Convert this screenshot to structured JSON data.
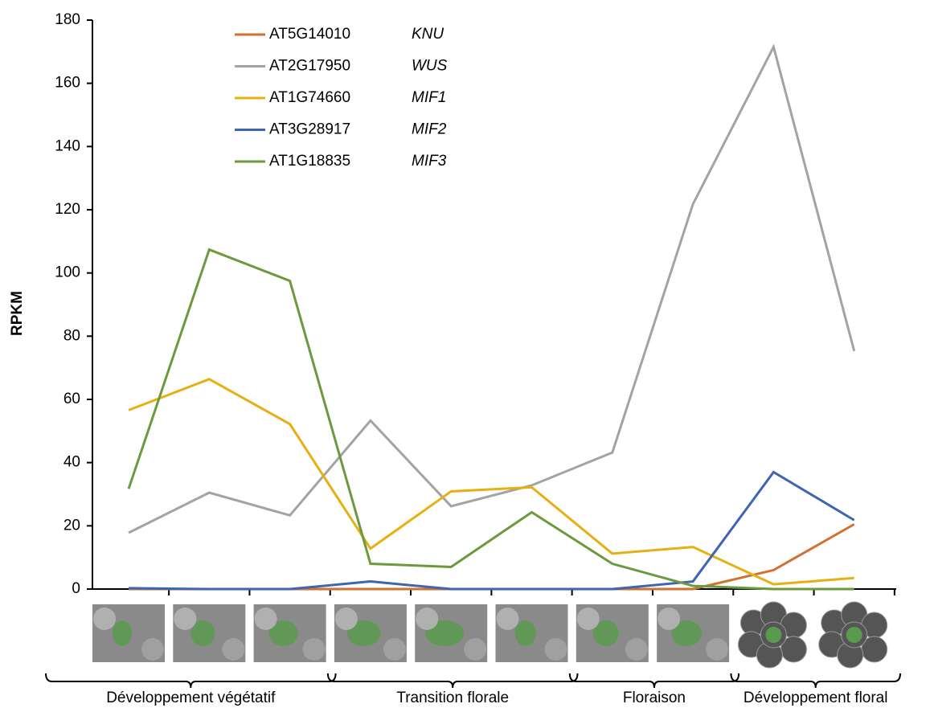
{
  "chart_data": {
    "type": "line",
    "y_label": "RPKM",
    "categories": [
      null,
      null,
      null,
      null,
      null,
      null,
      null,
      null,
      null,
      null
    ],
    "series": [
      {
        "name": "AT5G14010",
        "gene": "KNU",
        "color": "#d2702e",
        "values": [
          0,
          0,
          0,
          0,
          0,
          0,
          0,
          0,
          6,
          20.5
        ]
      },
      {
        "name": "AT2G17950",
        "gene": "WUS",
        "color": "#a3a3a3",
        "values": [
          17.8,
          30.5,
          23.3,
          53.3,
          26.2,
          32.8,
          43.2,
          121.8,
          171.5,
          75.3
        ]
      },
      {
        "name": "AT1G74660",
        "gene": "MIF1",
        "color": "#e6b012",
        "values": [
          56.6,
          66.4,
          52.2,
          12.8,
          30.9,
          32.2,
          11.2,
          13.3,
          1.5,
          3.5
        ]
      },
      {
        "name": "AT3G28917",
        "gene": "MIF2",
        "color": "#3d65b0",
        "values": [
          0.3,
          0,
          0,
          2.4,
          0,
          0,
          0,
          2.4,
          37,
          21.8
        ]
      },
      {
        "name": "AT1G18835",
        "gene": "MIF3",
        "color": "#6a9a3c",
        "values": [
          31.7,
          107.4,
          97.5,
          8.0,
          7.0,
          24.3,
          8.0,
          1.0,
          0,
          0
        ]
      }
    ],
    "groups": [
      {
        "label": "Développement végétatif",
        "span": 3
      },
      {
        "label": "Transition florale",
        "span": 3
      },
      {
        "label": "Floraison",
        "span": 2
      },
      {
        "label": "Développement floral",
        "span": 2
      }
    ],
    "ylim": [
      0,
      180
    ],
    "yticks": [
      0,
      20,
      40,
      60,
      80,
      100,
      120,
      140,
      160,
      180
    ],
    "grid": false
  }
}
